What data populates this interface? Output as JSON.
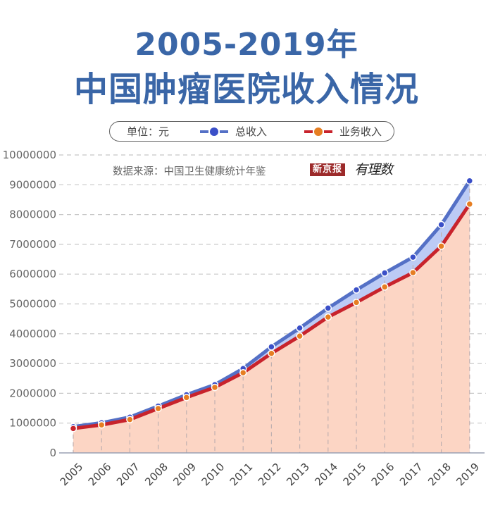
{
  "header": {
    "title_line1": "2005-2019年",
    "title_line2": "中国肿瘤医院收入情况"
  },
  "legend": {
    "unit_label": "单位：元",
    "series1_label": "总收入",
    "series2_label": "业务收入"
  },
  "source": {
    "text": "数据来源：中国卫生健康统计年鉴",
    "brand_label": "新京报",
    "brand2_label": "有理数"
  },
  "colors": {
    "title": "#3a66a7",
    "total_line": "#5470c6",
    "total_dot": "#3a4fc8",
    "total_fill": "#bccbf5",
    "business_line": "#c8232c",
    "business_dot": "#e67e22",
    "business_fill": "#fcd5c4",
    "grid": "#c8c8c8",
    "brand_bg": "#9c2a2a"
  },
  "chart_data": {
    "type": "area",
    "title": "2005-2019年中国肿瘤医院收入情况",
    "xlabel": "",
    "ylabel": "",
    "unit": "元",
    "categories": [
      "2005",
      "2006",
      "2007",
      "2008",
      "2009",
      "2010",
      "2011",
      "2012",
      "2013",
      "2014",
      "2015",
      "2016",
      "2017",
      "2018",
      "2019"
    ],
    "series": [
      {
        "name": "总收入",
        "values": [
          880000,
          1010000,
          1200000,
          1570000,
          1950000,
          2290000,
          2830000,
          3560000,
          4190000,
          4860000,
          5470000,
          6040000,
          6570000,
          7660000,
          9130000
        ]
      },
      {
        "name": "业务收入",
        "values": [
          820000,
          940000,
          1120000,
          1490000,
          1860000,
          2200000,
          2690000,
          3340000,
          3920000,
          4560000,
          5050000,
          5570000,
          6050000,
          6940000,
          8350000
        ]
      }
    ],
    "yticks": [
      "0",
      "1000000",
      "2000000",
      "3000000",
      "4000000",
      "5000000",
      "6000000",
      "7000000",
      "8000000",
      "9000000",
      "10000000"
    ],
    "ylim": [
      0,
      10000000
    ],
    "grid": true,
    "legend_position": "top",
    "source": "中国卫生健康统计年鉴"
  }
}
